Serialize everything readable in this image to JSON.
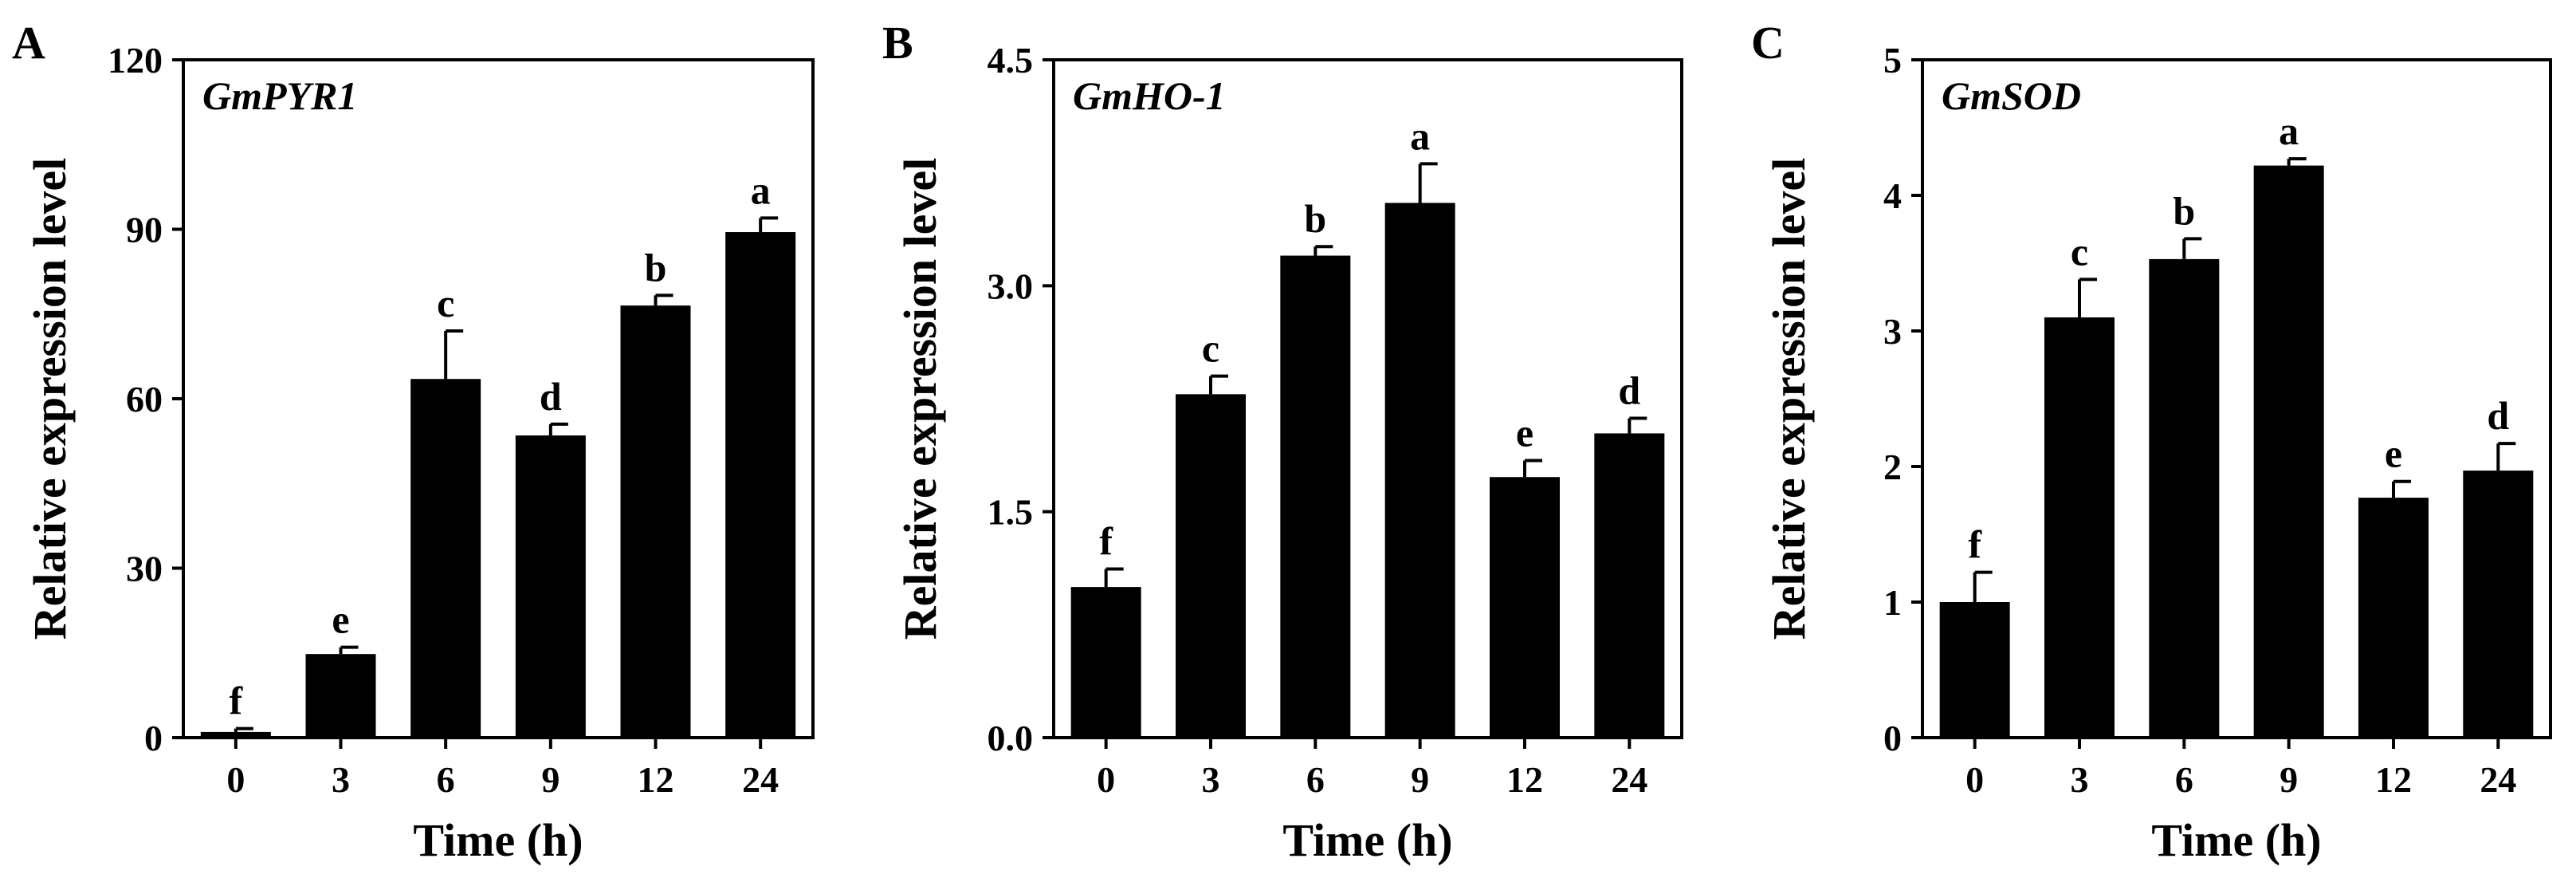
{
  "chart_data": [
    {
      "type": "bar",
      "panel_label": "A",
      "title": "GmPYR1",
      "xlabel": "Time (h)",
      "ylabel": "Relative expression level",
      "categories": [
        "0",
        "3",
        "6",
        "9",
        "12",
        "24"
      ],
      "values": [
        1.0,
        14.8,
        63.5,
        53.5,
        76.5,
        89.5
      ],
      "errors": [
        0.6,
        1.2,
        8.5,
        2.0,
        1.8,
        2.5
      ],
      "significance": [
        "f",
        "e",
        "c",
        "d",
        "b",
        "a"
      ],
      "ylim": [
        0,
        120
      ],
      "yticks": [
        0,
        30,
        60,
        90,
        120
      ],
      "ytick_labels": [
        "0",
        "30",
        "60",
        "90",
        "120"
      ],
      "bar_color": "#000000"
    },
    {
      "type": "bar",
      "panel_label": "B",
      "title": "GmHO-1",
      "xlabel": "Time (h)",
      "ylabel": "Relative expression level",
      "categories": [
        "0",
        "3",
        "6",
        "9",
        "12",
        "24"
      ],
      "values": [
        1.0,
        2.28,
        3.2,
        3.55,
        1.73,
        2.02
      ],
      "errors": [
        0.12,
        0.12,
        0.06,
        0.26,
        0.11,
        0.1
      ],
      "significance": [
        "f",
        "c",
        "b",
        "a",
        "e",
        "d"
      ],
      "ylim": [
        0,
        4.5
      ],
      "yticks": [
        0,
        1.5,
        3.0,
        4.5
      ],
      "ytick_labels": [
        "0.0",
        "1.5",
        "3.0",
        "4.5"
      ],
      "bar_color": "#000000"
    },
    {
      "type": "bar",
      "panel_label": "C",
      "title": "GmSOD",
      "xlabel": "Time (h)",
      "ylabel": "Relative expression level",
      "categories": [
        "0",
        "3",
        "6",
        "9",
        "12",
        "24"
      ],
      "values": [
        1.0,
        3.1,
        3.53,
        4.22,
        1.77,
        1.97
      ],
      "errors": [
        0.22,
        0.28,
        0.15,
        0.05,
        0.12,
        0.2
      ],
      "significance": [
        "f",
        "c",
        "b",
        "a",
        "e",
        "d"
      ],
      "ylim": [
        0,
        5
      ],
      "yticks": [
        0,
        1,
        2,
        3,
        4,
        5
      ],
      "ytick_labels": [
        "0",
        "1",
        "2",
        "3",
        "4",
        "5"
      ],
      "bar_color": "#000000"
    }
  ]
}
